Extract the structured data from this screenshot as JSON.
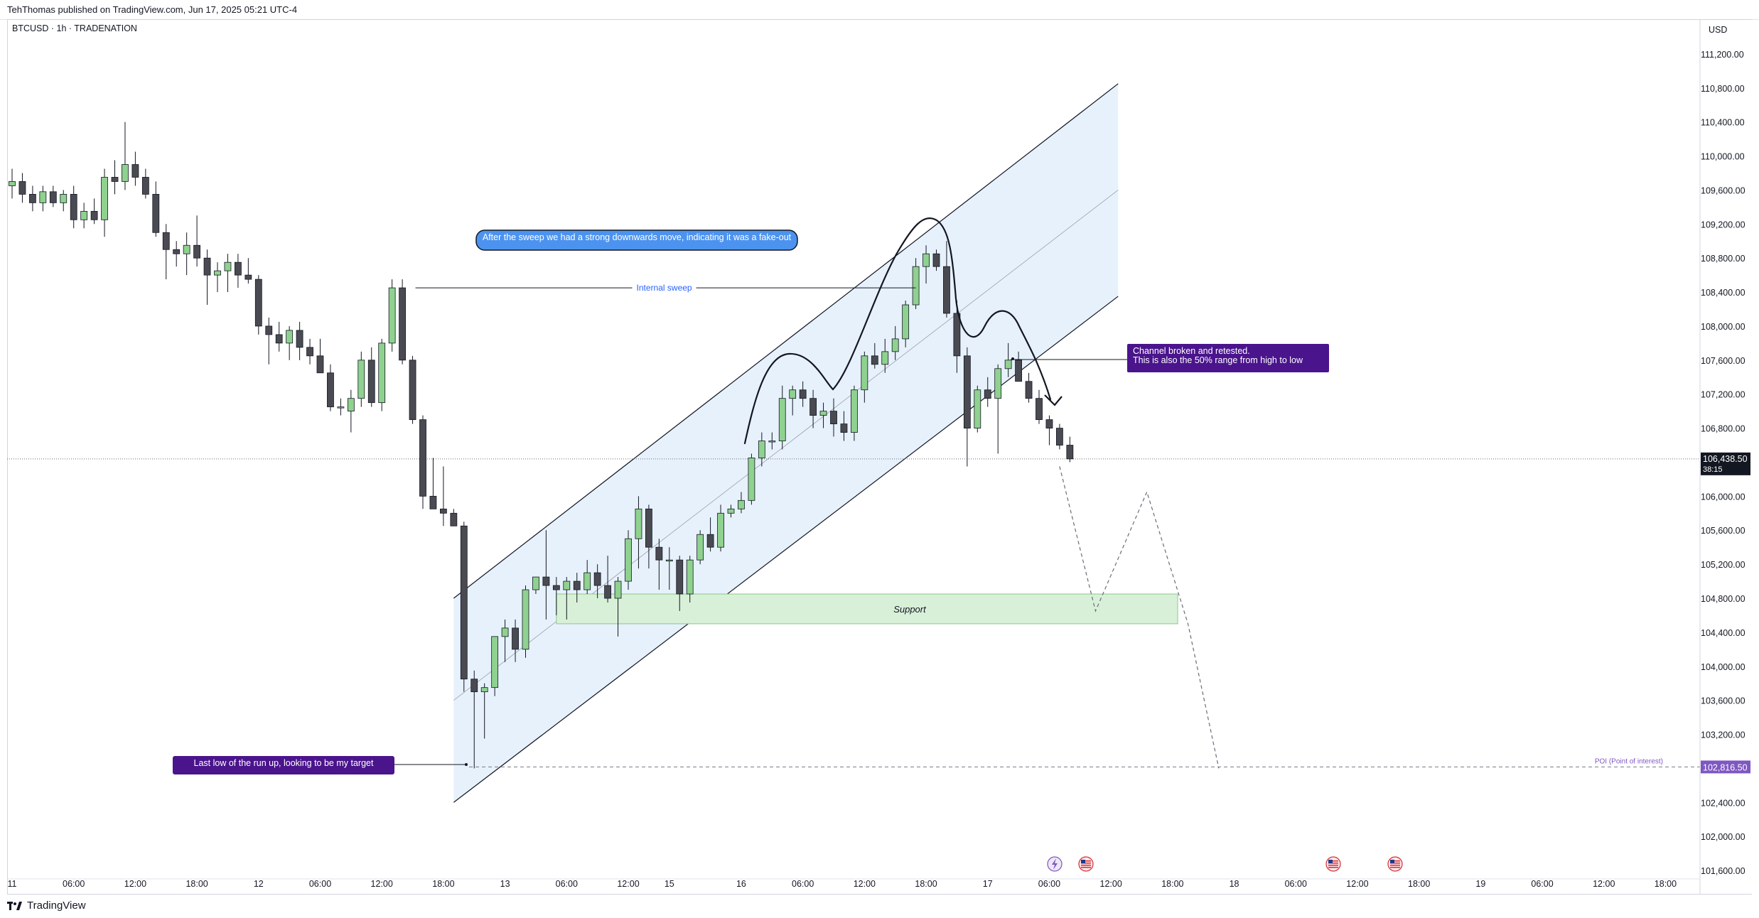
{
  "header": {
    "published_by": "TehThomas published on TradingView.com, Jun 17, 2025 05:21 UTC-4"
  },
  "symbol": {
    "label": "BTCUSD · 1h · TRADENATION"
  },
  "footer": {
    "brand": "TradingView"
  },
  "colors": {
    "bull": "#8fd18f",
    "bear": "#4a4b52",
    "channel_fill": "#e3effb",
    "support_fill": "#d8f0d8",
    "note_blue": "#4c93f0",
    "note_purple": "#4a148c",
    "poi": "#7e57c2",
    "price_tag": "#131722"
  },
  "chart_data": {
    "type": "candlestick",
    "timeframe": "1h",
    "currency": "USD",
    "ylim": [
      101500,
      111500
    ],
    "y_ticks": [
      101600,
      102000,
      102400,
      102800,
      103200,
      103600,
      104000,
      104400,
      104800,
      105200,
      105600,
      106000,
      106400,
      106800,
      107200,
      107600,
      108000,
      108400,
      108800,
      109200,
      109600,
      110000,
      110400,
      110800,
      111200
    ],
    "y_tick_labels": [
      "101,600.00",
      "102,000.00",
      "102,400.00",
      "102,800.00",
      "103,200.00",
      "103,600.00",
      "104,000.00",
      "104,400.00",
      "104,800.00",
      "105,200.00",
      "105,600.00",
      "106,000.00",
      "106,400.00",
      "106,800.00",
      "107,200.00",
      "107,600.00",
      "108,000.00",
      "108,400.00",
      "108,800.00",
      "109,200.00",
      "109,600.00",
      "110,000.00",
      "110,400.00",
      "110,800.00",
      "111,200.00"
    ],
    "x_ticks": [
      {
        "i": 0,
        "label": "11"
      },
      {
        "i": 6,
        "label": "06:00"
      },
      {
        "i": 12,
        "label": "12:00"
      },
      {
        "i": 18,
        "label": "18:00"
      },
      {
        "i": 24,
        "label": "12"
      },
      {
        "i": 30,
        "label": "06:00"
      },
      {
        "i": 36,
        "label": "12:00"
      },
      {
        "i": 42,
        "label": "18:00"
      },
      {
        "i": 48,
        "label": "13"
      },
      {
        "i": 54,
        "label": "06:00"
      },
      {
        "i": 60,
        "label": "12:00"
      },
      {
        "i": 64,
        "label": "15"
      },
      {
        "i": 71,
        "label": "16"
      },
      {
        "i": 77,
        "label": "06:00"
      },
      {
        "i": 83,
        "label": "12:00"
      },
      {
        "i": 89,
        "label": "18:00"
      },
      {
        "i": 95,
        "label": "17"
      },
      {
        "i": 101,
        "label": "06:00"
      },
      {
        "i": 107,
        "label": "12:00"
      },
      {
        "i": 113,
        "label": "18:00"
      },
      {
        "i": 119,
        "label": "18"
      },
      {
        "i": 125,
        "label": "06:00"
      },
      {
        "i": 131,
        "label": "12:00"
      },
      {
        "i": 137,
        "label": "18:00"
      },
      {
        "i": 143,
        "label": "19"
      },
      {
        "i": 149,
        "label": "06:00"
      },
      {
        "i": 155,
        "label": "12:00"
      },
      {
        "i": 161,
        "label": "18:00"
      }
    ],
    "candles": [
      {
        "o": 109650,
        "h": 109850,
        "l": 109500,
        "c": 109700
      },
      {
        "o": 109700,
        "h": 109800,
        "l": 109450,
        "c": 109550
      },
      {
        "o": 109550,
        "h": 109650,
        "l": 109350,
        "c": 109450
      },
      {
        "o": 109450,
        "h": 109650,
        "l": 109350,
        "c": 109580
      },
      {
        "o": 109580,
        "h": 109650,
        "l": 109400,
        "c": 109450
      },
      {
        "o": 109450,
        "h": 109600,
        "l": 109350,
        "c": 109550
      },
      {
        "o": 109550,
        "h": 109650,
        "l": 109150,
        "c": 109250
      },
      {
        "o": 109250,
        "h": 109450,
        "l": 109150,
        "c": 109350
      },
      {
        "o": 109350,
        "h": 109500,
        "l": 109200,
        "c": 109250
      },
      {
        "o": 109250,
        "h": 109850,
        "l": 109050,
        "c": 109750
      },
      {
        "o": 109750,
        "h": 109950,
        "l": 109550,
        "c": 109700
      },
      {
        "o": 109700,
        "h": 110400,
        "l": 109600,
        "c": 109900
      },
      {
        "o": 109900,
        "h": 110050,
        "l": 109650,
        "c": 109750
      },
      {
        "o": 109750,
        "h": 109850,
        "l": 109500,
        "c": 109550
      },
      {
        "o": 109550,
        "h": 109700,
        "l": 109050,
        "c": 109100
      },
      {
        "o": 109100,
        "h": 109200,
        "l": 108550,
        "c": 108900
      },
      {
        "o": 108900,
        "h": 109000,
        "l": 108700,
        "c": 108850
      },
      {
        "o": 108850,
        "h": 109100,
        "l": 108600,
        "c": 108950
      },
      {
        "o": 108950,
        "h": 109300,
        "l": 108700,
        "c": 108800
      },
      {
        "o": 108800,
        "h": 108900,
        "l": 108250,
        "c": 108600
      },
      {
        "o": 108600,
        "h": 108750,
        "l": 108400,
        "c": 108650
      },
      {
        "o": 108650,
        "h": 108850,
        "l": 108400,
        "c": 108750
      },
      {
        "o": 108750,
        "h": 108850,
        "l": 108450,
        "c": 108600
      },
      {
        "o": 108600,
        "h": 108800,
        "l": 108500,
        "c": 108550
      },
      {
        "o": 108550,
        "h": 108600,
        "l": 107900,
        "c": 108000
      },
      {
        "o": 108000,
        "h": 108100,
        "l": 107550,
        "c": 107900
      },
      {
        "o": 107900,
        "h": 108050,
        "l": 107700,
        "c": 107800
      },
      {
        "o": 107800,
        "h": 108000,
        "l": 107600,
        "c": 107950
      },
      {
        "o": 107950,
        "h": 108050,
        "l": 107600,
        "c": 107750
      },
      {
        "o": 107750,
        "h": 107850,
        "l": 107550,
        "c": 107650
      },
      {
        "o": 107650,
        "h": 107850,
        "l": 107450,
        "c": 107450
      },
      {
        "o": 107450,
        "h": 107550,
        "l": 107000,
        "c": 107050
      },
      {
        "o": 107050,
        "h": 107150,
        "l": 106950,
        "c": 107050
      },
      {
        "o": 107000,
        "h": 107250,
        "l": 106750,
        "c": 107150
      },
      {
        "o": 107150,
        "h": 107700,
        "l": 107050,
        "c": 107600
      },
      {
        "o": 107600,
        "h": 107750,
        "l": 107050,
        "c": 107100
      },
      {
        "o": 107100,
        "h": 107850,
        "l": 107000,
        "c": 107800
      },
      {
        "o": 107800,
        "h": 108550,
        "l": 107700,
        "c": 108450
      },
      {
        "o": 108450,
        "h": 108550,
        "l": 107550,
        "c": 107600
      },
      {
        "o": 107600,
        "h": 107650,
        "l": 106850,
        "c": 106900
      },
      {
        "o": 106900,
        "h": 106950,
        "l": 105850,
        "c": 106000
      },
      {
        "o": 106000,
        "h": 106450,
        "l": 105850,
        "c": 105850
      },
      {
        "o": 105850,
        "h": 106350,
        "l": 105650,
        "c": 105800
      },
      {
        "o": 105800,
        "h": 105850,
        "l": 105650,
        "c": 105650
      },
      {
        "o": 105650,
        "h": 105700,
        "l": 103700,
        "c": 103850
      },
      {
        "o": 103850,
        "h": 103950,
        "l": 102800,
        "c": 103700
      },
      {
        "o": 103700,
        "h": 103800,
        "l": 103150,
        "c": 103750
      },
      {
        "o": 103750,
        "h": 104350,
        "l": 103650,
        "c": 104350
      },
      {
        "o": 104350,
        "h": 104550,
        "l": 104050,
        "c": 104450
      },
      {
        "o": 104450,
        "h": 104550,
        "l": 104050,
        "c": 104200
      },
      {
        "o": 104200,
        "h": 104950,
        "l": 104100,
        "c": 104900
      },
      {
        "o": 104900,
        "h": 105050,
        "l": 104850,
        "c": 105050
      },
      {
        "o": 105050,
        "h": 105600,
        "l": 104550,
        "c": 104950
      },
      {
        "o": 104950,
        "h": 105050,
        "l": 104600,
        "c": 104900
      },
      {
        "o": 104900,
        "h": 105050,
        "l": 104550,
        "c": 105000
      },
      {
        "o": 105000,
        "h": 105100,
        "l": 104750,
        "c": 104900
      },
      {
        "o": 104900,
        "h": 105250,
        "l": 104850,
        "c": 105100
      },
      {
        "o": 105100,
        "h": 105200,
        "l": 104800,
        "c": 104950
      },
      {
        "o": 104950,
        "h": 105300,
        "l": 104750,
        "c": 104800
      },
      {
        "o": 104800,
        "h": 105050,
        "l": 104350,
        "c": 105000
      },
      {
        "o": 105000,
        "h": 105600,
        "l": 104900,
        "c": 105500
      },
      {
        "o": 105500,
        "h": 106000,
        "l": 105150,
        "c": 105850
      },
      {
        "o": 105850,
        "h": 105900,
        "l": 105150,
        "c": 105400
      },
      {
        "o": 105400,
        "h": 105500,
        "l": 104900,
        "c": 105250
      },
      {
        "o": 105250,
        "h": 105400,
        "l": 104900,
        "c": 105250
      },
      {
        "o": 105250,
        "h": 105300,
        "l": 104650,
        "c": 104850
      },
      {
        "o": 104850,
        "h": 105300,
        "l": 104750,
        "c": 105250
      },
      {
        "o": 105250,
        "h": 105600,
        "l": 105200,
        "c": 105550
      },
      {
        "o": 105550,
        "h": 105750,
        "l": 105350,
        "c": 105400
      },
      {
        "o": 105400,
        "h": 105900,
        "l": 105350,
        "c": 105800
      },
      {
        "o": 105800,
        "h": 105900,
        "l": 105750,
        "c": 105850
      },
      {
        "o": 105850,
        "h": 106050,
        "l": 105800,
        "c": 105950
      },
      {
        "o": 105950,
        "h": 106500,
        "l": 105900,
        "c": 106450
      },
      {
        "o": 106450,
        "h": 106750,
        "l": 106350,
        "c": 106650
      },
      {
        "o": 106650,
        "h": 106750,
        "l": 106550,
        "c": 106650
      },
      {
        "o": 106650,
        "h": 107300,
        "l": 106550,
        "c": 107150
      },
      {
        "o": 107150,
        "h": 107300,
        "l": 106950,
        "c": 107250
      },
      {
        "o": 107250,
        "h": 107350,
        "l": 107050,
        "c": 107150
      },
      {
        "o": 107150,
        "h": 107250,
        "l": 106800,
        "c": 106950
      },
      {
        "o": 106950,
        "h": 107100,
        "l": 106800,
        "c": 107000
      },
      {
        "o": 107000,
        "h": 107150,
        "l": 106700,
        "c": 106850
      },
      {
        "o": 106850,
        "h": 107000,
        "l": 106650,
        "c": 106750
      },
      {
        "o": 106750,
        "h": 107300,
        "l": 106650,
        "c": 107250
      },
      {
        "o": 107250,
        "h": 107700,
        "l": 107100,
        "c": 107650
      },
      {
        "o": 107650,
        "h": 107800,
        "l": 107500,
        "c": 107550
      },
      {
        "o": 107550,
        "h": 107850,
        "l": 107450,
        "c": 107700
      },
      {
        "o": 107700,
        "h": 108000,
        "l": 107600,
        "c": 107850
      },
      {
        "o": 107850,
        "h": 108300,
        "l": 107750,
        "c": 108250
      },
      {
        "o": 108250,
        "h": 108800,
        "l": 108200,
        "c": 108700
      },
      {
        "o": 108700,
        "h": 108950,
        "l": 108500,
        "c": 108850
      },
      {
        "o": 108850,
        "h": 108900,
        "l": 108650,
        "c": 108700
      },
      {
        "o": 108700,
        "h": 109000,
        "l": 108100,
        "c": 108150
      },
      {
        "o": 108150,
        "h": 108300,
        "l": 107450,
        "c": 107650
      },
      {
        "o": 107650,
        "h": 107750,
        "l": 106350,
        "c": 106800
      },
      {
        "o": 106800,
        "h": 107300,
        "l": 106750,
        "c": 107250
      },
      {
        "o": 107250,
        "h": 107400,
        "l": 107050,
        "c": 107150
      },
      {
        "o": 107150,
        "h": 107550,
        "l": 106500,
        "c": 107500
      },
      {
        "o": 107500,
        "h": 107800,
        "l": 107400,
        "c": 107600
      },
      {
        "o": 107600,
        "h": 107700,
        "l": 107350,
        "c": 107350
      },
      {
        "o": 107350,
        "h": 107450,
        "l": 107100,
        "c": 107150
      },
      {
        "o": 107150,
        "h": 107250,
        "l": 106850,
        "c": 106900
      },
      {
        "o": 106900,
        "h": 106950,
        "l": 106600,
        "c": 106800
      },
      {
        "o": 106800,
        "h": 106850,
        "l": 106550,
        "c": 106600
      },
      {
        "o": 106600,
        "h": 106700,
        "l": 106400,
        "c": 106438.5
      }
    ],
    "last_price": 106438.5,
    "last_price_label": "106,438.50",
    "countdown": "38:15",
    "poi_price": 102816.5,
    "poi_label": "102,816.50",
    "poi_text": "POI (Point of interest)",
    "channel": {
      "lower_start": {
        "i": 43,
        "p": 102400
      },
      "lower_end": {
        "i": 107.7,
        "p": 108350
      },
      "upper_start": {
        "i": 43,
        "p": 104800
      },
      "upper_end": {
        "i": 107.7,
        "p": 110850
      }
    },
    "support_zone": {
      "x_start_i": 53,
      "x_end_i": 113.5,
      "low": 104500,
      "high": 104850,
      "label": "Support"
    },
    "internal_sweep": {
      "i_start": 39,
      "i_end": 88,
      "price": 108450,
      "label": "Internal sweep"
    },
    "annotations": {
      "fake_out": "After the sweep we had a strong downwards move, indicating it was a fake-out",
      "channel_broken_line1": "Channel broken and retested.",
      "channel_broken_line2": "This is also the 50% range from high to low",
      "target": "Last low of the run up, looking to be my target"
    },
    "projection": [
      {
        "i": 102,
        "p": 106350
      },
      {
        "i": 105.5,
        "p": 104650
      },
      {
        "i": 110.5,
        "p": 106050
      },
      {
        "i": 114.5,
        "p": 104500
      },
      {
        "i": 117.5,
        "p": 102800
      }
    ]
  }
}
